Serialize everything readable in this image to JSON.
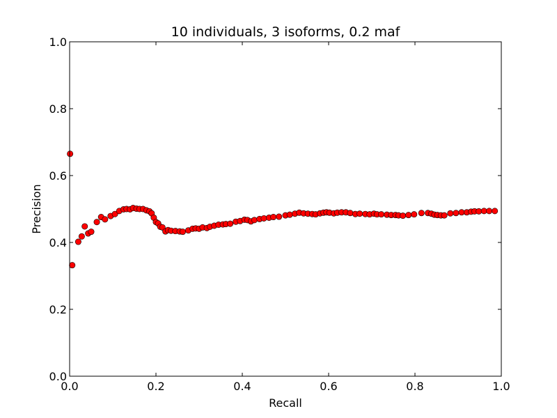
{
  "chart_data": {
    "type": "scatter",
    "title": "10 individuals, 3 isoforms, 0.2 maf",
    "xlabel": "Recall",
    "ylabel": "Precision",
    "xlim": [
      0.0,
      1.0
    ],
    "ylim": [
      0.0,
      1.0
    ],
    "xticks": [
      "0.0",
      "0.2",
      "0.4",
      "0.6",
      "0.8",
      "1.0"
    ],
    "yticks": [
      "0.0",
      "0.2",
      "0.4",
      "0.6",
      "0.8",
      "1.0"
    ],
    "grid": false,
    "marker_color": "#ff0000",
    "marker_edge": "#000000",
    "series": [
      {
        "x": [
          0.001,
          0.006,
          0.02,
          0.028,
          0.035,
          0.043,
          0.05,
          0.063,
          0.073,
          0.082,
          0.095,
          0.105,
          0.115,
          0.125,
          0.132,
          0.14,
          0.147,
          0.155,
          0.162,
          0.17,
          0.178,
          0.185,
          0.19,
          0.195,
          0.2,
          0.205,
          0.21,
          0.215,
          0.222,
          0.228,
          0.235,
          0.245,
          0.255,
          0.262,
          0.275,
          0.285,
          0.292,
          0.3,
          0.308,
          0.318,
          0.325,
          0.335,
          0.345,
          0.355,
          0.362,
          0.372,
          0.385,
          0.395,
          0.405,
          0.412,
          0.42,
          0.428,
          0.44,
          0.45,
          0.462,
          0.472,
          0.485,
          0.5,
          0.51,
          0.522,
          0.532,
          0.542,
          0.552,
          0.562,
          0.57,
          0.58,
          0.588,
          0.595,
          0.602,
          0.612,
          0.62,
          0.63,
          0.64,
          0.65,
          0.662,
          0.672,
          0.685,
          0.695,
          0.705,
          0.712,
          0.722,
          0.735,
          0.745,
          0.755,
          0.762,
          0.772,
          0.785,
          0.798,
          0.815,
          0.83,
          0.838,
          0.845,
          0.852,
          0.86,
          0.868,
          0.882,
          0.895,
          0.908,
          0.92,
          0.93,
          0.938,
          0.948,
          0.96,
          0.972,
          0.985
        ],
        "y": [
          0.665,
          0.332,
          0.402,
          0.418,
          0.448,
          0.427,
          0.432,
          0.461,
          0.476,
          0.469,
          0.479,
          0.485,
          0.494,
          0.499,
          0.5,
          0.499,
          0.503,
          0.501,
          0.5,
          0.5,
          0.496,
          0.493,
          0.487,
          0.474,
          0.461,
          0.457,
          0.447,
          0.445,
          0.433,
          0.437,
          0.435,
          0.434,
          0.433,
          0.432,
          0.436,
          0.441,
          0.442,
          0.441,
          0.445,
          0.443,
          0.447,
          0.45,
          0.453,
          0.454,
          0.455,
          0.456,
          0.462,
          0.464,
          0.468,
          0.467,
          0.463,
          0.467,
          0.47,
          0.472,
          0.474,
          0.476,
          0.477,
          0.481,
          0.483,
          0.486,
          0.489,
          0.487,
          0.486,
          0.485,
          0.484,
          0.487,
          0.489,
          0.49,
          0.489,
          0.487,
          0.489,
          0.49,
          0.49,
          0.488,
          0.485,
          0.486,
          0.485,
          0.484,
          0.486,
          0.484,
          0.484,
          0.483,
          0.482,
          0.482,
          0.481,
          0.48,
          0.482,
          0.484,
          0.488,
          0.488,
          0.486,
          0.483,
          0.482,
          0.481,
          0.481,
          0.487,
          0.488,
          0.49,
          0.49,
          0.492,
          0.493,
          0.493,
          0.494,
          0.494,
          0.494
        ]
      }
    ]
  }
}
